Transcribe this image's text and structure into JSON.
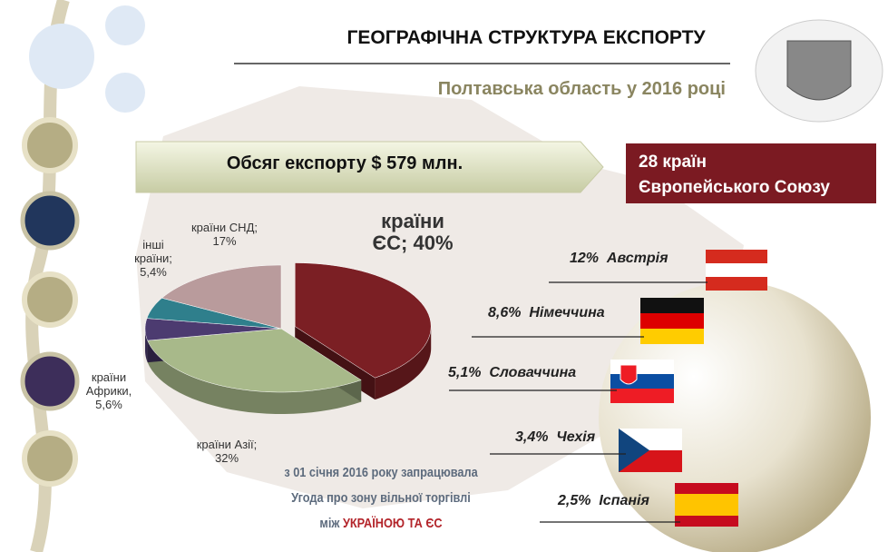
{
  "chart_data": {
    "type": "pie",
    "title": "ГЕОГРАФІЧНА СТРУКТУРА ЕКСПОРТУ",
    "subtitle": "Полтавська область у 2016 році",
    "categories": [
      "країни ЄС;",
      "країни Азії;",
      "країни Африки,",
      "інші країни;",
      "країни СНД;"
    ],
    "values": [
      40,
      32,
      5.6,
      5.4,
      17
    ],
    "value_labels": [
      "40%",
      "32%",
      "5,6%",
      "5,4%",
      "17%"
    ],
    "colors": [
      "#7b1f24",
      "#a8b98a",
      "#4c3b70",
      "#2f7f8c",
      "#b99b9c"
    ]
  },
  "volume": "Обсяг експорту $ 579 млн.",
  "eu_box": [
    "28 країн",
    "Європейського Союзу"
  ],
  "countries": [
    "12%  Австрія",
    "8,6%  Німеччина",
    "5,1%  Словаччина",
    "3,4%  Чехія",
    "2,5%  Іспанія"
  ],
  "agreement": [
    "з 01 січня 2016 року запрацювала",
    "Угода про зону вільної торгівлі",
    "між",
    "УКРАЇНОЮ ТА ЄС"
  ]
}
